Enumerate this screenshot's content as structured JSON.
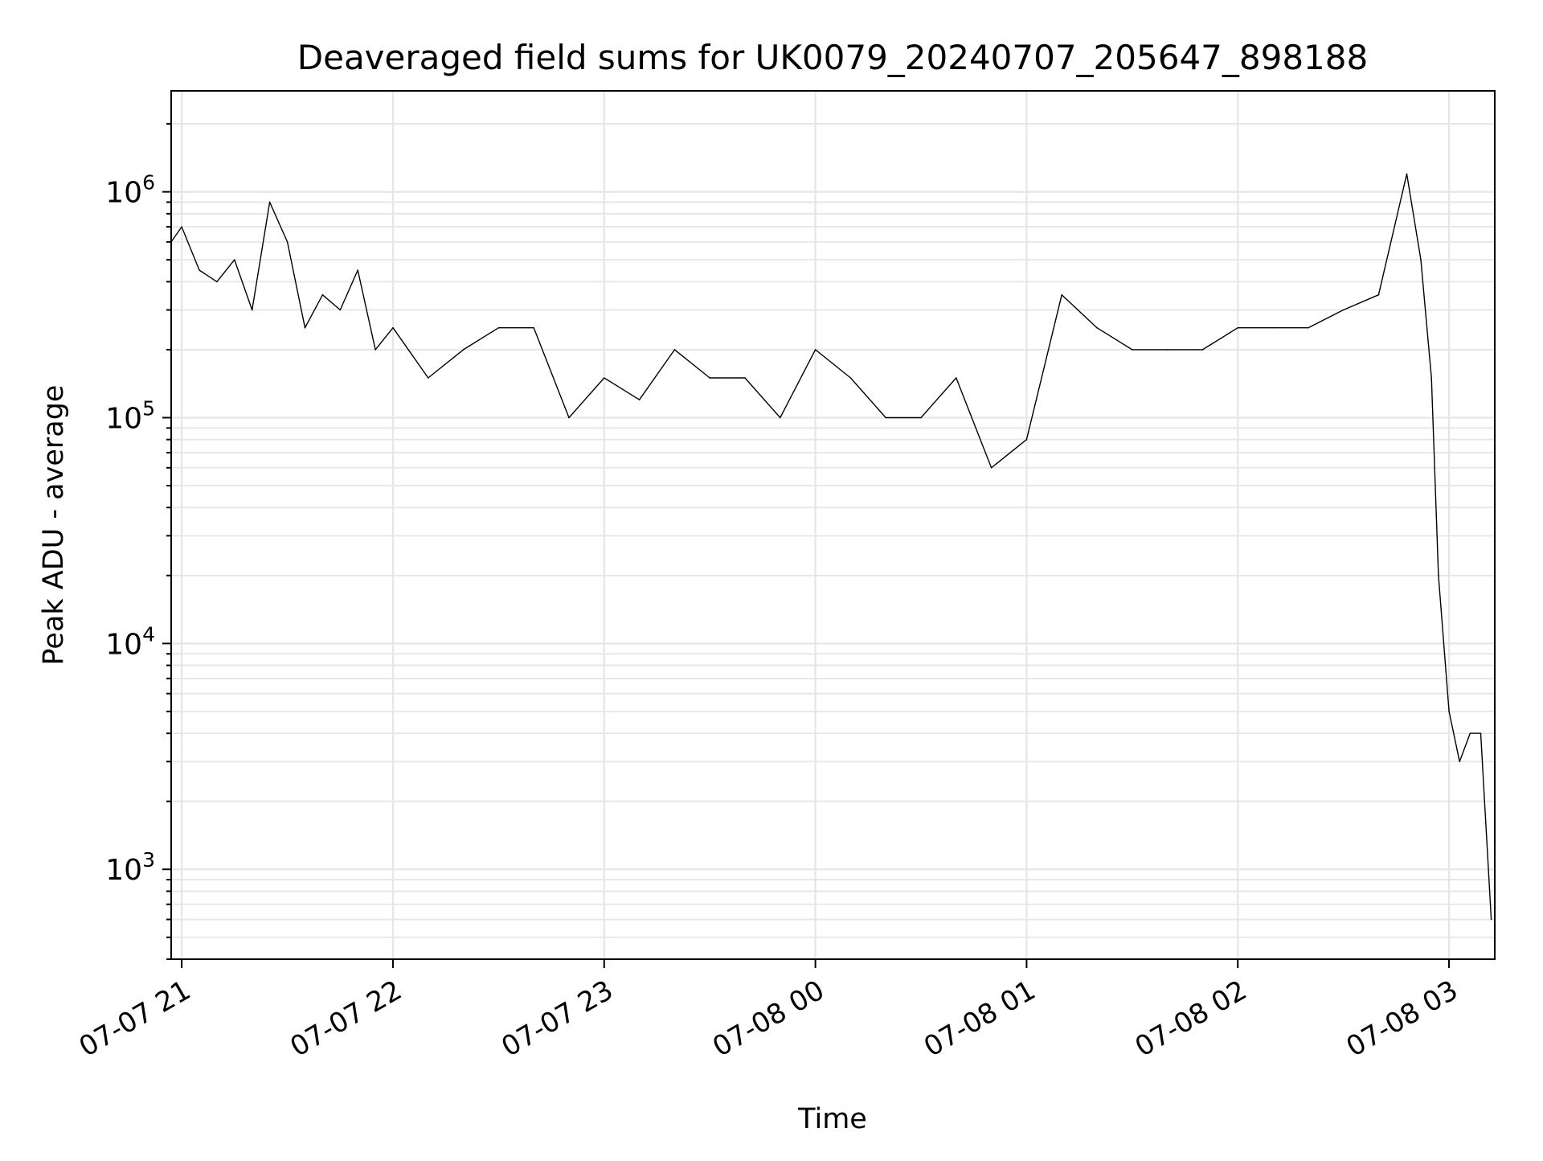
{
  "chart_data": {
    "type": "line",
    "title": "Deaveraged field sums for UK0079_20240707_205647_898188",
    "xlabel": "Time",
    "ylabel": "Peak ADU - average",
    "x_scale": "time",
    "y_scale": "log",
    "xlim": [
      "2024-07-07 20:57",
      "2024-07-08 03:13"
    ],
    "ylim": [
      400,
      2800000
    ],
    "x_ticks": [
      {
        "value": "2024-07-07 21:00",
        "label": "07-07 21"
      },
      {
        "value": "2024-07-07 22:00",
        "label": "07-07 22"
      },
      {
        "value": "2024-07-07 23:00",
        "label": "07-07 23"
      },
      {
        "value": "2024-07-08 00:00",
        "label": "07-08 00"
      },
      {
        "value": "2024-07-08 01:00",
        "label": "07-08 01"
      },
      {
        "value": "2024-07-08 02:00",
        "label": "07-08 02"
      },
      {
        "value": "2024-07-08 03:00",
        "label": "07-08 03"
      }
    ],
    "y_ticks": [
      {
        "value": 1000,
        "base": "10",
        "exp": "3"
      },
      {
        "value": 10000,
        "base": "10",
        "exp": "4"
      },
      {
        "value": 100000,
        "base": "10",
        "exp": "5"
      },
      {
        "value": 1000000,
        "base": "10",
        "exp": "6"
      }
    ],
    "grid": true,
    "legend": "none",
    "line_color": "#000000",
    "grid_color": "#e6e6e6",
    "series": [
      {
        "x": [
          "2024-07-07 20:57",
          "2024-07-07 21:00",
          "2024-07-07 21:05",
          "2024-07-07 21:10",
          "2024-07-07 21:15",
          "2024-07-07 21:20",
          "2024-07-07 21:25",
          "2024-07-07 21:30",
          "2024-07-07 21:35",
          "2024-07-07 21:40",
          "2024-07-07 21:45",
          "2024-07-07 21:50",
          "2024-07-07 21:55",
          "2024-07-07 22:00",
          "2024-07-07 22:10",
          "2024-07-07 22:20",
          "2024-07-07 22:30",
          "2024-07-07 22:40",
          "2024-07-07 22:50",
          "2024-07-07 23:00",
          "2024-07-07 23:10",
          "2024-07-07 23:20",
          "2024-07-07 23:30",
          "2024-07-07 23:40",
          "2024-07-07 23:50",
          "2024-07-08 00:00",
          "2024-07-08 00:10",
          "2024-07-08 00:20",
          "2024-07-08 00:30",
          "2024-07-08 00:40",
          "2024-07-08 00:50",
          "2024-07-08 01:00",
          "2024-07-08 01:10",
          "2024-07-08 01:20",
          "2024-07-08 01:30",
          "2024-07-08 01:40",
          "2024-07-08 01:50",
          "2024-07-08 02:00",
          "2024-07-08 02:10",
          "2024-07-08 02:20",
          "2024-07-08 02:30",
          "2024-07-08 02:40",
          "2024-07-08 02:48",
          "2024-07-08 02:52",
          "2024-07-08 02:55",
          "2024-07-08 02:57",
          "2024-07-08 03:00",
          "2024-07-08 03:03",
          "2024-07-08 03:06",
          "2024-07-08 03:09",
          "2024-07-08 03:12"
        ],
        "values": [
          600000,
          700000,
          450000,
          400000,
          500000,
          300000,
          900000,
          600000,
          250000,
          350000,
          300000,
          450000,
          200000,
          250000,
          150000,
          200000,
          250000,
          250000,
          100000,
          150000,
          120000,
          200000,
          150000,
          150000,
          100000,
          200000,
          150000,
          100000,
          100000,
          150000,
          60000,
          80000,
          350000,
          250000,
          200000,
          200000,
          200000,
          250000,
          250000,
          250000,
          300000,
          350000,
          1200000,
          500000,
          150000,
          20000,
          5000,
          3000,
          4000,
          4000,
          600
        ]
      }
    ]
  }
}
